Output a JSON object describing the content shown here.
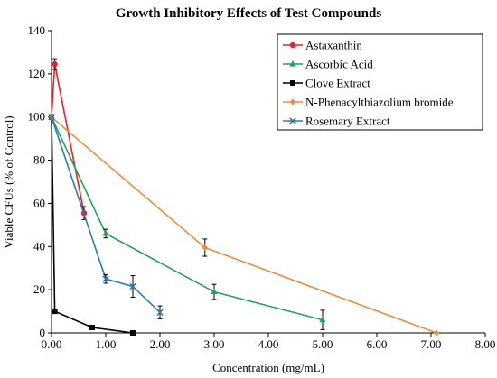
{
  "chart_data": {
    "type": "line",
    "title": "Growth Inhibitory Effects of Test Compounds",
    "xlabel": "Concentration (mg/mL)",
    "ylabel": "Viable CFUs (% of Control)",
    "xlim": [
      0,
      8
    ],
    "ylim": [
      0,
      140
    ],
    "x_ticks": [
      "0.00",
      "1.00",
      "2.00",
      "3.00",
      "4.00",
      "5.00",
      "6.00",
      "7.00",
      "8.00"
    ],
    "y_ticks": [
      "0",
      "20",
      "40",
      "60",
      "80",
      "100",
      "120",
      "140"
    ],
    "legend_position": "top-right",
    "grid": false,
    "series": [
      {
        "name": "Astaxanthin",
        "color": "#e8212b",
        "marker": "circle",
        "points": [
          {
            "x": 0.0,
            "y": 100,
            "err": 0
          },
          {
            "x": 0.06,
            "y": 124.5,
            "err": 2.5
          },
          {
            "x": 0.6,
            "y": 55.5,
            "err": 3
          }
        ]
      },
      {
        "name": "Ascorbic Acid",
        "color": "#1fa454",
        "marker": "triangle",
        "points": [
          {
            "x": 0.0,
            "y": 100,
            "err": 0
          },
          {
            "x": 1.0,
            "y": 46,
            "err": 2
          },
          {
            "x": 3.0,
            "y": 19,
            "err": 3.5
          },
          {
            "x": 5.0,
            "y": 6,
            "err": 4.5
          }
        ]
      },
      {
        "name": "Clove Extract",
        "color": "#000000",
        "marker": "square",
        "points": [
          {
            "x": 0.0,
            "y": 100,
            "err": 0
          },
          {
            "x": 0.06,
            "y": 10,
            "err": 0
          },
          {
            "x": 0.75,
            "y": 2.5,
            "err": 0
          },
          {
            "x": 1.5,
            "y": 0,
            "err": 0
          }
        ]
      },
      {
        "name": "N-Phenacylthiazolium bromide",
        "color": "#f08a3c",
        "marker": "diamond",
        "points": [
          {
            "x": 0.0,
            "y": 100,
            "err": 0
          },
          {
            "x": 2.83,
            "y": 39.5,
            "err": 4
          },
          {
            "x": 7.1,
            "y": 0,
            "err": 0
          }
        ]
      },
      {
        "name": "Rosemary Extract",
        "color": "#2a7ab9",
        "marker": "x",
        "points": [
          {
            "x": 0.0,
            "y": 100,
            "err": 0
          },
          {
            "x": 1.0,
            "y": 25,
            "err": 2
          },
          {
            "x": 1.5,
            "y": 21.5,
            "err": 5
          },
          {
            "x": 2.0,
            "y": 9.5,
            "err": 3
          }
        ]
      }
    ]
  }
}
